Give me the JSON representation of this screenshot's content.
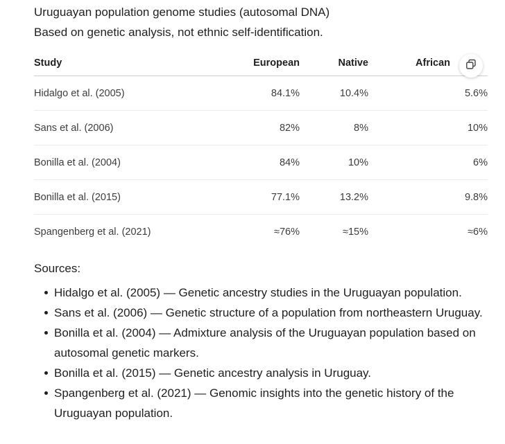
{
  "title": "Uruguayan population genome studies (autosomal DNA)",
  "subtitle": "Based on genetic analysis, not ethnic self-identification.",
  "table": {
    "headers": [
      "Study",
      "European",
      "Native",
      "African"
    ],
    "rows": [
      [
        "Hidalgo et al. (2005)",
        "84.1%",
        "10.4%",
        "5.6%"
      ],
      [
        "Sans et al. (2006)",
        "82%",
        "8%",
        "10%"
      ],
      [
        "Bonilla et al. (2004)",
        "84%",
        "10%",
        "6%"
      ],
      [
        "Bonilla et al. (2015)",
        "77.1%",
        "13.2%",
        "9.8%"
      ],
      [
        "Spangenberg et al. (2021)",
        "≈76%",
        "≈15%",
        "≈6%"
      ]
    ],
    "copy_icon": "copy-icon"
  },
  "sources": {
    "title": "Sources:",
    "items": [
      "Hidalgo et al. (2005) — Genetic ancestry studies in the Uruguayan population.",
      "Sans et al. (2006) — Genetic structure of a population from northeastern Uruguay.",
      "Bonilla et al. (2004) — Admixture analysis of the Uruguayan population based on autosomal genetic markers.",
      "Bonilla et al. (2015) — Genetic ancestry analysis in Uruguay.",
      "Spangenberg et al. (2021) — Genomic insights into the genetic history of the Uruguayan population."
    ]
  }
}
